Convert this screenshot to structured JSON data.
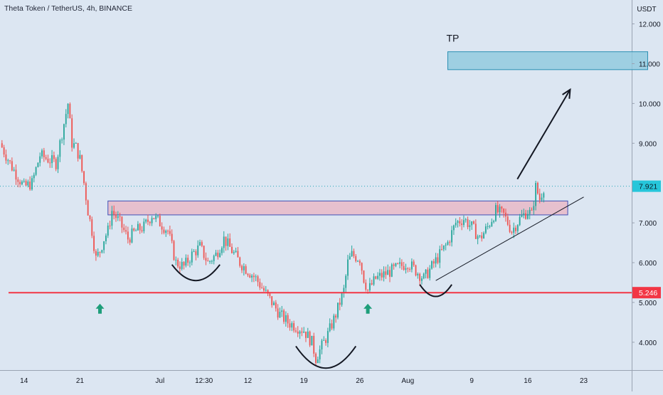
{
  "header": {
    "title": "Theta Token / TetherUS, 4h, BINANCE"
  },
  "chart_data": {
    "type": "candlestick",
    "currency": "USDT",
    "y_ticks": [
      {
        "v": 12.0,
        "label": "12.000"
      },
      {
        "v": 11.0,
        "label": "11.000"
      },
      {
        "v": 10.0,
        "label": "10.000"
      },
      {
        "v": 9.0,
        "label": "9.000"
      },
      {
        "v": 7.0,
        "label": "7.000"
      },
      {
        "v": 6.0,
        "label": "6.000"
      },
      {
        "v": 5.0,
        "label": "5.000"
      },
      {
        "v": 4.0,
        "label": "4.000"
      }
    ],
    "x_ticks": [
      {
        "d": 0,
        "label": "14"
      },
      {
        "d": 7,
        "label": "21"
      },
      {
        "d": 17,
        "label": "Jul"
      },
      {
        "d": 22.5,
        "label": "12:30"
      },
      {
        "d": 28,
        "label": "12"
      },
      {
        "d": 35,
        "label": "19"
      },
      {
        "d": 42,
        "label": "26"
      },
      {
        "d": 48,
        "label": "Aug"
      },
      {
        "d": 56,
        "label": "9"
      },
      {
        "d": 63,
        "label": "16"
      },
      {
        "d": 70,
        "label": "23"
      }
    ],
    "ylim": [
      3.3,
      12.6
    ],
    "xlim": [
      -3,
      76
    ],
    "current_price": {
      "value": 7.921,
      "label": "7.921"
    },
    "support": {
      "value": 5.246,
      "label": "5.246"
    },
    "path": [
      [
        -3,
        9.0
      ],
      [
        -1.5,
        8.4
      ],
      [
        0,
        7.9
      ],
      [
        1,
        8.0
      ],
      [
        2,
        8.7
      ],
      [
        3,
        8.6
      ],
      [
        4,
        8.5
      ],
      [
        5,
        9.5
      ],
      [
        5.5,
        10.0
      ],
      [
        6,
        9.0
      ],
      [
        6.5,
        8.9
      ],
      [
        7,
        8.6
      ],
      [
        7.5,
        8.0
      ],
      [
        8,
        7.3
      ],
      [
        8.5,
        6.8
      ],
      [
        9,
        6.1
      ],
      [
        9.5,
        6.3
      ],
      [
        10,
        6.6
      ],
      [
        10.5,
        6.8
      ],
      [
        11,
        7.3
      ],
      [
        12,
        7.0
      ],
      [
        13,
        6.6
      ],
      [
        14,
        6.8
      ],
      [
        15,
        6.9
      ],
      [
        16,
        7.2
      ],
      [
        17,
        7.0
      ],
      [
        18,
        6.8
      ],
      [
        19,
        6.0
      ],
      [
        20,
        5.9
      ],
      [
        21,
        6.2
      ],
      [
        22,
        6.4
      ],
      [
        23,
        6.0
      ],
      [
        24,
        6.2
      ],
      [
        25,
        6.6
      ],
      [
        26,
        6.3
      ],
      [
        27,
        6.0
      ],
      [
        28,
        5.8
      ],
      [
        29,
        5.6
      ],
      [
        30,
        5.3
      ],
      [
        31,
        5.0
      ],
      [
        32,
        4.7
      ],
      [
        33,
        4.5
      ],
      [
        34,
        4.4
      ],
      [
        35,
        4.3
      ],
      [
        36,
        4.0
      ],
      [
        36.5,
        3.6
      ],
      [
        37,
        3.8
      ],
      [
        38,
        4.2
      ],
      [
        39,
        4.7
      ],
      [
        40,
        5.3
      ],
      [
        40.5,
        6.0
      ],
      [
        41,
        6.2
      ],
      [
        42,
        6.1
      ],
      [
        42.5,
        5.6
      ],
      [
        43,
        5.3
      ],
      [
        44,
        5.6
      ],
      [
        45,
        5.7
      ],
      [
        46,
        5.8
      ],
      [
        47,
        5.9
      ],
      [
        48,
        6.0
      ],
      [
        49,
        5.8
      ],
      [
        50,
        5.6
      ],
      [
        51,
        5.9
      ],
      [
        52,
        6.2
      ],
      [
        53,
        6.5
      ],
      [
        54,
        7.0
      ],
      [
        55,
        7.1
      ],
      [
        56,
        6.9
      ],
      [
        57,
        6.6
      ],
      [
        58,
        6.9
      ],
      [
        59,
        7.3
      ],
      [
        60,
        7.2
      ],
      [
        61,
        6.8
      ],
      [
        62,
        7.1
      ],
      [
        63,
        7.3
      ],
      [
        63.5,
        7.2
      ],
      [
        64,
        7.9
      ],
      [
        64.5,
        7.6
      ],
      [
        65,
        7.9
      ]
    ],
    "annotations": {
      "tp_label": "TP",
      "tp_zone": {
        "x0": 53,
        "x1": 78,
        "y0": 10.85,
        "y1": 11.3
      },
      "resistance_zone": {
        "x0": 10.5,
        "x1": 68,
        "y0": 7.2,
        "y1": 7.55
      },
      "arrow": {
        "x0": 61.7,
        "y0": 8.1,
        "x1": 68.3,
        "y1": 10.35
      },
      "trendline": {
        "x0": 51.5,
        "y0": 5.55,
        "x1": 70,
        "y1": 7.65
      },
      "up_arrows": [
        {
          "x": 9.5,
          "y": 4.95
        },
        {
          "x": 43,
          "y": 4.95
        }
      ],
      "arcs": [
        {
          "x0": 18.5,
          "x1": 24.5,
          "y": 5.95,
          "depth": 0.4
        },
        {
          "x0": 34,
          "x1": 41.5,
          "y": 3.9,
          "depth": 0.55
        },
        {
          "x0": 49.5,
          "x1": 53.5,
          "y": 5.45,
          "depth": 0.3
        }
      ]
    },
    "colors": {
      "up": "#26a69a",
      "down": "#ef5350",
      "support": "#f23645",
      "zone_fill": "#e7b8c8",
      "zone_stroke": "#3f51b5",
      "tp_fill": "#8ec9dd",
      "tp_stroke": "#2a8fb2",
      "current_bg": "#26c6da"
    }
  }
}
